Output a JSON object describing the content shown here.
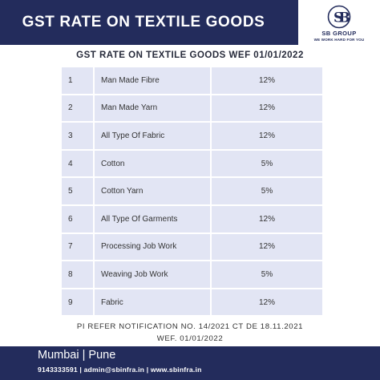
{
  "header": {
    "title": "GST RATE ON TEXTILE GOODS"
  },
  "logo": {
    "name": "SB GROUP",
    "tagline": "WE WORK HARD FOR YOU"
  },
  "subtitle": "GST RATE ON TEXTILE GOODS WEF 01/01/2022",
  "table": {
    "rows": [
      {
        "no": "1",
        "item": "Man Made Fibre",
        "rate": "12%"
      },
      {
        "no": "2",
        "item": "Man Made Yarn",
        "rate": "12%"
      },
      {
        "no": "3",
        "item": "All Type Of Fabric",
        "rate": "12%"
      },
      {
        "no": "4",
        "item": "Cotton",
        "rate": "5%"
      },
      {
        "no": "5",
        "item": "Cotton Yarn",
        "rate": "5%"
      },
      {
        "no": "6",
        "item": "All Type Of Garments",
        "rate": "12%"
      },
      {
        "no": "7",
        "item": "Processing Job Work",
        "rate": "12%"
      },
      {
        "no": "8",
        "item": "Weaving Job Work",
        "rate": "5%"
      },
      {
        "no": "9",
        "item": "Fabric",
        "rate": "12%"
      }
    ]
  },
  "notes": {
    "line1": "PI REFER NOTIFICATION NO. 14/2021 CT DE 18.11.2021",
    "line2": "WEF. 01/01/2022"
  },
  "footer": {
    "cities": "Mumbai | Pune",
    "contact": "9143333591 | admin@sbinfra.in | www.sbinfra.in"
  },
  "colors": {
    "navy": "#232c5c",
    "row_bg": "#e2e5f4"
  }
}
